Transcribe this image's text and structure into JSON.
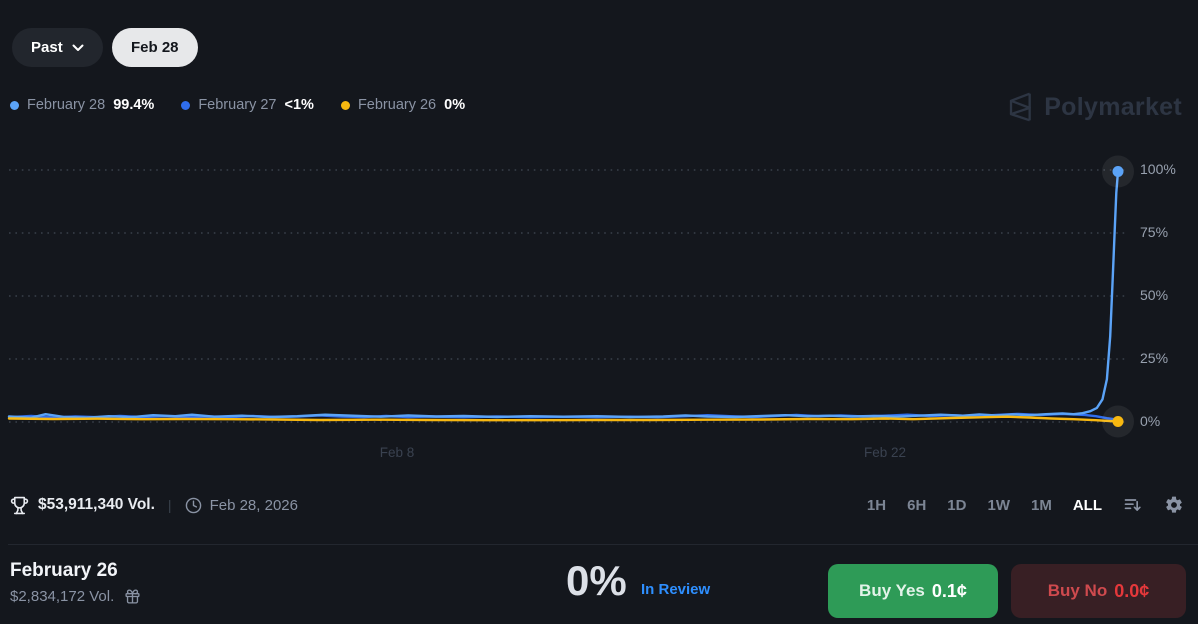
{
  "header": {
    "past_button": "Past",
    "date_pill": "Feb 28"
  },
  "legend": {
    "items": [
      {
        "label": "February 28",
        "value": "99.4%",
        "color": "#5ba3f7"
      },
      {
        "label": "February 27",
        "value": "<1%",
        "color": "#2f6ded"
      },
      {
        "label": "February 26",
        "value": "0%",
        "color": "#f8b810"
      }
    ]
  },
  "watermark": {
    "brand": "Polymarket"
  },
  "chart_data": {
    "type": "line",
    "title": "",
    "ylim": [
      0,
      100
    ],
    "yticks": [
      "100%",
      "75%",
      "50%",
      "25%",
      "0%"
    ],
    "xticks": [
      "Feb 8",
      "Feb 22"
    ],
    "grid": "horizontal-dotted",
    "legend_position": "top-left",
    "series": [
      {
        "name": "February 27",
        "color": "#2f6ded",
        "end_label": "<1%",
        "end_marker": false,
        "points": [
          [
            0,
            1.9
          ],
          [
            0.02,
            2.4
          ],
          [
            0.04,
            1.8
          ],
          [
            0.06,
            2.2
          ],
          [
            0.08,
            1.9
          ],
          [
            0.1,
            2.4
          ],
          [
            0.12,
            2.0
          ],
          [
            0.14,
            2.3
          ],
          [
            0.16,
            1.9
          ],
          [
            0.18,
            2.2
          ],
          [
            0.2,
            2.0
          ],
          [
            0.22,
            2.4
          ],
          [
            0.24,
            2.0
          ],
          [
            0.26,
            2.2
          ],
          [
            0.28,
            2.6
          ],
          [
            0.3,
            2.2
          ],
          [
            0.32,
            2.0
          ],
          [
            0.34,
            2.4
          ],
          [
            0.36,
            2.0
          ],
          [
            0.38,
            2.2
          ],
          [
            0.41,
            1.9
          ],
          [
            0.44,
            2.2
          ],
          [
            0.47,
            1.9
          ],
          [
            0.5,
            2.1
          ],
          [
            0.53,
            1.9
          ],
          [
            0.56,
            2.1
          ],
          [
            0.585,
            1.9
          ],
          [
            0.61,
            2.3
          ],
          [
            0.63,
            2.7
          ],
          [
            0.65,
            2.3
          ],
          [
            0.67,
            2.0
          ],
          [
            0.69,
            2.4
          ],
          [
            0.71,
            2.8
          ],
          [
            0.73,
            2.3
          ],
          [
            0.75,
            2.6
          ],
          [
            0.77,
            2.2
          ],
          [
            0.79,
            2.5
          ],
          [
            0.81,
            2.9
          ],
          [
            0.83,
            2.4
          ],
          [
            0.85,
            2.7
          ],
          [
            0.87,
            2.3
          ],
          [
            0.89,
            2.8
          ],
          [
            0.91,
            3.2
          ],
          [
            0.93,
            2.8
          ],
          [
            0.95,
            3.2
          ],
          [
            0.97,
            2.8
          ],
          [
            0.98,
            2.3
          ],
          [
            0.99,
            1.5
          ],
          [
            1,
            0.9
          ]
        ]
      },
      {
        "name": "February 28",
        "color": "#5ba3f7",
        "end_label": "99.4%",
        "end_marker": true,
        "points": [
          [
            0,
            2.2
          ],
          [
            0.02,
            1.7
          ],
          [
            0.033,
            3.1
          ],
          [
            0.05,
            2.0
          ],
          [
            0.07,
            1.7
          ],
          [
            0.09,
            2.3
          ],
          [
            0.11,
            1.9
          ],
          [
            0.13,
            2.7
          ],
          [
            0.15,
            2.3
          ],
          [
            0.165,
            2.9
          ],
          [
            0.185,
            2.1
          ],
          [
            0.21,
            2.5
          ],
          [
            0.235,
            2.0
          ],
          [
            0.26,
            2.3
          ],
          [
            0.285,
            2.9
          ],
          [
            0.31,
            2.5
          ],
          [
            0.335,
            2.1
          ],
          [
            0.36,
            2.6
          ],
          [
            0.385,
            2.2
          ],
          [
            0.41,
            2.4
          ],
          [
            0.44,
            2.0
          ],
          [
            0.47,
            2.3
          ],
          [
            0.5,
            2.1
          ],
          [
            0.53,
            2.3
          ],
          [
            0.56,
            2.0
          ],
          [
            0.59,
            2.2
          ],
          [
            0.61,
            2.6
          ],
          [
            0.63,
            2.2
          ],
          [
            0.655,
            2.0
          ],
          [
            0.68,
            2.4
          ],
          [
            0.7,
            2.7
          ],
          [
            0.72,
            2.3
          ],
          [
            0.74,
            2.5
          ],
          [
            0.76,
            2.2
          ],
          [
            0.78,
            2.4
          ],
          [
            0.8,
            2.1
          ],
          [
            0.82,
            2.5
          ],
          [
            0.84,
            2.9
          ],
          [
            0.86,
            2.5
          ],
          [
            0.875,
            3.0
          ],
          [
            0.89,
            2.6
          ],
          [
            0.905,
            3.0
          ],
          [
            0.92,
            2.7
          ],
          [
            0.935,
            3.1
          ],
          [
            0.95,
            3.4
          ],
          [
            0.96,
            3.1
          ],
          [
            0.968,
            3.5
          ],
          [
            0.975,
            4.3
          ],
          [
            0.981,
            5.6
          ],
          [
            0.986,
            9
          ],
          [
            0.99,
            17
          ],
          [
            0.993,
            34
          ],
          [
            0.995,
            55
          ],
          [
            0.997,
            76
          ],
          [
            0.9985,
            91
          ],
          [
            1,
            99.4
          ]
        ]
      },
      {
        "name": "February 26",
        "color": "#f8b810",
        "end_label": "0%",
        "end_marker": true,
        "points": [
          [
            0,
            1.4
          ],
          [
            0.04,
            1.2
          ],
          [
            0.08,
            1.3
          ],
          [
            0.12,
            1.1
          ],
          [
            0.16,
            1.2
          ],
          [
            0.2,
            1.1
          ],
          [
            0.24,
            1.0
          ],
          [
            0.28,
            0.8
          ],
          [
            0.33,
            0.9
          ],
          [
            0.38,
            0.8
          ],
          [
            0.43,
            0.7
          ],
          [
            0.48,
            0.7
          ],
          [
            0.53,
            0.8
          ],
          [
            0.58,
            0.8
          ],
          [
            0.63,
            0.9
          ],
          [
            0.68,
            1.0
          ],
          [
            0.72,
            1.2
          ],
          [
            0.76,
            1.1
          ],
          [
            0.79,
            1.4
          ],
          [
            0.815,
            1.1
          ],
          [
            0.85,
            1.6
          ],
          [
            0.88,
            1.9
          ],
          [
            0.9,
            2.1
          ],
          [
            0.92,
            1.8
          ],
          [
            0.94,
            1.4
          ],
          [
            0.96,
            1.1
          ],
          [
            0.98,
            0.7
          ],
          [
            1,
            0.2
          ]
        ]
      }
    ]
  },
  "toolbar": {
    "volume": "$53,911,340 Vol.",
    "divider": "|",
    "date": "Feb 28, 2026",
    "timeframes": [
      "1H",
      "6H",
      "1D",
      "1W",
      "1M",
      "ALL"
    ],
    "active_timeframe": "ALL"
  },
  "outcome": {
    "title": "February 26",
    "volume": "$2,834,172 Vol.",
    "chance": "0%",
    "status": "In Review",
    "buy_yes_label": "Buy Yes",
    "buy_yes_price": "0.1¢",
    "buy_no_label": "Buy No",
    "buy_no_price": "0.0¢"
  }
}
